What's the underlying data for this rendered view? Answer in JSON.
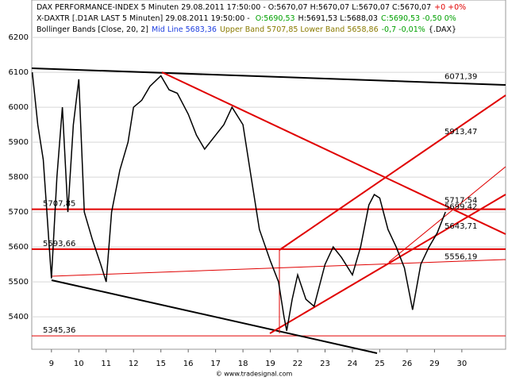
{
  "chart_data": {
    "type": "line",
    "legend": [
      [
        {
          "text": "DAX PERFORMANCE-INDEX 5 Minuten  29.08.2011 17:50:00 - O:5670,07 H:5670,07 L:5670,07 C:5670,07",
          "color": "#000000"
        },
        {
          "text": "+0 +0%",
          "color": "#e00000"
        }
      ],
      [
        {
          "text": "X-DAXTR [.D1AR LAST 5 Minuten] 29.08.2011 19:50:00 - ",
          "color": "#000000"
        },
        {
          "text": "O:5690,53",
          "color": "#00a000"
        },
        {
          "text": "H:5691,53 L:5688,03",
          "color": "#000000"
        },
        {
          "text": "C:5690,53 -0,50 0%",
          "color": "#00a000"
        }
      ],
      [
        {
          "text": "Bollinger Bands [Close, 20, 2]",
          "color": "#000000"
        },
        {
          "text": "Mid Line 5683,36",
          "color": "#2040e0"
        },
        {
          "text": "Upper Band 5707,85 Lower Band 5658,86",
          "color": "#8a7a00"
        },
        {
          "text": "-0,7 -0,01%",
          "color": "#00a000"
        },
        {
          "text": "{.DAX}",
          "color": "#000000"
        }
      ]
    ],
    "footer": "© www.tradesignal.com",
    "x": [
      -0.7,
      -0.5,
      -0.3,
      0,
      0.2,
      0.4,
      0.6,
      0.8,
      1.0,
      1.2,
      1.5,
      1.8,
      2.0,
      2.2,
      2.5,
      2.8,
      3.0,
      3.3,
      3.6,
      4.0,
      4.3,
      4.6,
      5.0,
      5.3,
      5.6,
      6.0,
      6.3,
      6.6,
      7.0,
      7.3,
      7.6,
      8.0,
      8.3,
      8.5,
      8.6,
      8.8,
      9.0,
      9.3,
      9.6,
      10.0,
      10.3,
      10.6,
      11.0,
      11.3,
      11.6,
      11.8,
      12.0,
      12.3,
      12.6,
      12.9,
      13.2,
      13.5,
      13.8,
      14.1,
      14.4
    ],
    "series": [
      {
        "name": "DAX",
        "color": "#000000",
        "values": [
          6100,
          5950,
          5850,
          5510,
          5800,
          6000,
          5700,
          5950,
          6080,
          5700,
          5620,
          5550,
          5500,
          5700,
          5820,
          5900,
          6000,
          6020,
          6060,
          6090,
          6050,
          6040,
          5980,
          5920,
          5880,
          5920,
          5950,
          6000,
          5950,
          5800,
          5650,
          5560,
          5500,
          5400,
          5360,
          5450,
          5520,
          5450,
          5430,
          5550,
          5600,
          5570,
          5520,
          5600,
          5720,
          5750,
          5740,
          5650,
          5600,
          5540,
          5420,
          5550,
          5600,
          5640,
          5700
        ]
      }
    ],
    "levels": [
      {
        "value": 5707.85,
        "label": "5707,85"
      },
      {
        "value": 5593.66,
        "label": "5593,66"
      },
      {
        "value": 5345.36,
        "label": "5345,36"
      }
    ],
    "annotations": [
      {
        "value": 6071.39,
        "label": "6071,39"
      },
      {
        "value": 5913.47,
        "label": "5913,47"
      },
      {
        "value": 5717.54,
        "label": "5717,54"
      },
      {
        "value": 5699.42,
        "label": "5699,42"
      },
      {
        "value": 5643.71,
        "label": "5643,71"
      },
      {
        "value": 5556.19,
        "label": "5556,19"
      }
    ],
    "xlim": [
      -0.72,
      16.6
    ],
    "ylim": [
      5307,
      6307
    ],
    "yticks": [
      5400,
      5500,
      5600,
      5700,
      5800,
      5900,
      6000,
      6100,
      6200
    ],
    "xticks": [
      {
        "value": 0,
        "label": "9"
      },
      {
        "value": 1,
        "label": "10"
      },
      {
        "value": 2,
        "label": "11"
      },
      {
        "value": 3,
        "label": "12"
      },
      {
        "value": 4,
        "label": "15"
      },
      {
        "value": 5,
        "label": "16"
      },
      {
        "value": 6,
        "label": "17"
      },
      {
        "value": 7,
        "label": "18"
      },
      {
        "value": 8,
        "label": "19"
      },
      {
        "value": 9,
        "label": "22"
      },
      {
        "value": 10,
        "label": "23"
      },
      {
        "value": 11,
        "label": "24"
      },
      {
        "value": 12,
        "label": "25"
      },
      {
        "value": 13,
        "label": "26"
      },
      {
        "value": 14,
        "label": "29"
      },
      {
        "value": 15,
        "label": "30"
      }
    ],
    "grid": true,
    "level_color": "#e00000"
  }
}
